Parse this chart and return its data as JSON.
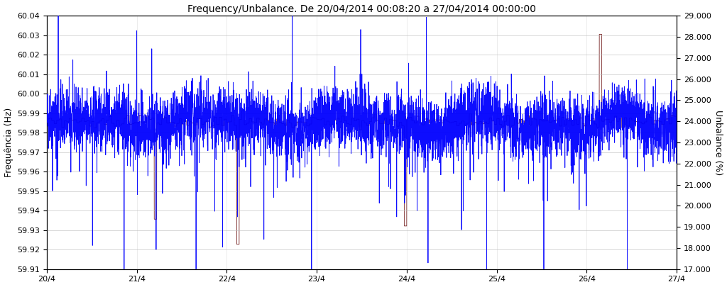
{
  "title": "Frequency/Unbalance. De 20/04/2014 00:08:20 a 27/04/2014 00:00:00",
  "ylabel_left": "Frequência (Hz)",
  "ylabel_right": "Unbalance (%)",
  "freq_ylim": [
    59.91,
    60.04
  ],
  "freq_yticks": [
    59.91,
    59.92,
    59.93,
    59.94,
    59.95,
    59.96,
    59.97,
    59.98,
    59.99,
    60.0,
    60.01,
    60.02,
    60.03,
    60.04
  ],
  "unb_ylim": [
    17.0,
    29.0
  ],
  "unb_yticks": [
    17.0,
    18.0,
    19.0,
    20.0,
    21.0,
    22.0,
    23.0,
    24.0,
    25.0,
    26.0,
    27.0,
    28.0,
    29.0
  ],
  "x_tick_labels": [
    "20/4",
    "21/4",
    "22/4",
    "23/4",
    "24/4",
    "25/4",
    "26/4",
    "27/4"
  ],
  "freq_color": "#0000FF",
  "unb_color": "#6B1010",
  "background_color": "#FFFFFF",
  "grid_color": "#BBBBBB",
  "title_fontsize": 10,
  "axis_label_fontsize": 9,
  "tick_fontsize": 8,
  "seed": 42,
  "n_points": 5040,
  "freq_base": 59.985,
  "freq_noise_std": 0.008,
  "freq_spike_down_prob": 0.003,
  "freq_spike_up_prob": 0.002,
  "freq_spike_down_amp": 0.05,
  "freq_spike_up_amp": 0.04,
  "unb_base": 24.0,
  "unb_noise_std": 0.15,
  "unb_spike_prob": 0.015,
  "unb_spike_amp": 3.5
}
